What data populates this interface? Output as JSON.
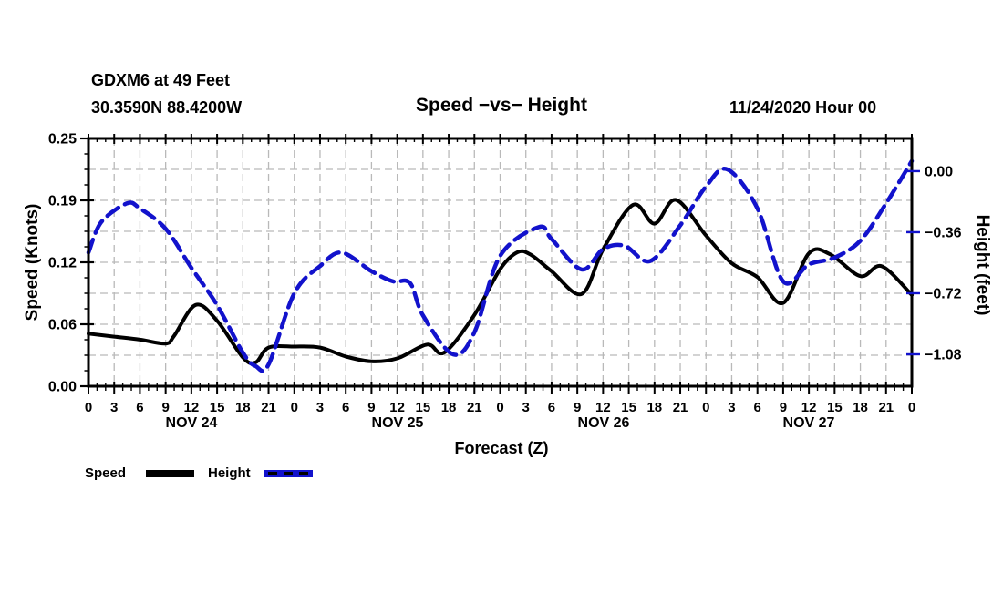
{
  "header": {
    "station_line1": "GDXM6 at 49 Feet",
    "station_line2": "30.3590N 88.4200W",
    "title": "Speed −vs− Height",
    "run_label": "11/24/2020 Hour 00"
  },
  "axes": {
    "left_label": "Speed (Knots)",
    "right_label": "Height (feet)",
    "x_label": "Forecast (Z)",
    "day_labels": [
      "NOV 24",
      "NOV 25",
      "NOV 26",
      "NOV 27"
    ]
  },
  "legend": {
    "speed_label": "Speed",
    "height_label": "Height"
  },
  "colors": {
    "speed": "#000000",
    "height": "#1212cc",
    "grid": "#b9b9b9"
  },
  "chart_data": {
    "type": "line",
    "title": "Speed −vs− Height",
    "xlabel": "Forecast (Z)",
    "x_unit": "forecast hour (Z), 3-hourly, 0–96 h starting 11/24/2020 00Z",
    "x_range_hours": [
      0,
      96
    ],
    "x_tick_step_hours": 3,
    "x_minor_tick_step_hours": 1,
    "x_tick_labels": [
      "0",
      "3",
      "6",
      "9",
      "12",
      "15",
      "18",
      "21",
      "0",
      "3",
      "6",
      "9",
      "12",
      "15",
      "18",
      "21",
      "0",
      "3",
      "6",
      "9",
      "12",
      "15",
      "18",
      "21",
      "0",
      "3",
      "6",
      "9",
      "12",
      "15",
      "18",
      "21",
      "0"
    ],
    "grid": true,
    "legend_position": "bottom-left",
    "left_axis": {
      "label": "Speed (Knots)",
      "ylim": [
        0,
        0.25
      ],
      "tick_values": [
        0,
        0.0625,
        0.125,
        0.1875,
        0.25
      ],
      "tick_labels": [
        "0.00",
        "0.06",
        "0.12",
        "0.19",
        "0.25"
      ],
      "minor_tick_step": 0.015625,
      "grid_step": 0.03125
    },
    "right_axis": {
      "label": "Height (feet)",
      "ylim": [
        -1.268,
        0.193
      ],
      "tick_values": [
        0,
        -0.36,
        -0.72,
        -1.08
      ],
      "tick_labels": [
        "0.00",
        "−0.36",
        "−0.72",
        "−1.08"
      ]
    },
    "series": [
      {
        "name": "Speed",
        "axis": "left",
        "unit": "Knots",
        "color": "#000000",
        "style": "solid",
        "x": [
          0,
          3,
          6,
          9,
          10,
          12.5,
          15,
          18,
          19.5,
          21,
          24,
          27,
          30,
          33,
          36,
          39.5,
          41.5,
          45,
          48,
          50,
          51.5,
          54,
          57.5,
          60,
          63.5,
          66,
          68.5,
          72,
          75,
          78,
          81,
          84,
          86.5,
          90,
          92.5,
          96
        ],
        "y": [
          0.053,
          0.05,
          0.047,
          0.043,
          0.051,
          0.082,
          0.066,
          0.029,
          0.024,
          0.039,
          0.04,
          0.039,
          0.03,
          0.025,
          0.028,
          0.042,
          0.034,
          0.072,
          0.118,
          0.135,
          0.133,
          0.116,
          0.093,
          0.138,
          0.183,
          0.164,
          0.188,
          0.152,
          0.124,
          0.11,
          0.084,
          0.134,
          0.133,
          0.111,
          0.121,
          0.092
        ]
      },
      {
        "name": "Height",
        "axis": "right",
        "unit": "feet",
        "color": "#1212cc",
        "style": "dashed",
        "x": [
          0,
          1.5,
          4.5,
          6,
          9,
          12,
          15,
          18,
          19.5,
          21,
          24,
          27,
          29.5,
          33,
          35.5,
          37.5,
          39,
          42.5,
          45,
          48,
          52.5,
          54,
          57.5,
          60,
          62.5,
          65.5,
          69,
          72,
          74.5,
          78,
          81,
          84,
          87,
          90,
          93,
          96
        ],
        "y": [
          -0.48,
          -0.3,
          -0.19,
          -0.22,
          -0.34,
          -0.57,
          -0.79,
          -1.07,
          -1.15,
          -1.14,
          -0.72,
          -0.56,
          -0.48,
          -0.59,
          -0.65,
          -0.66,
          -0.85,
          -1.08,
          -0.95,
          -0.5,
          -0.33,
          -0.4,
          -0.58,
          -0.46,
          -0.44,
          -0.53,
          -0.32,
          -0.09,
          0.01,
          -0.22,
          -0.65,
          -0.55,
          -0.51,
          -0.41,
          -0.19,
          0.06
        ]
      }
    ]
  }
}
